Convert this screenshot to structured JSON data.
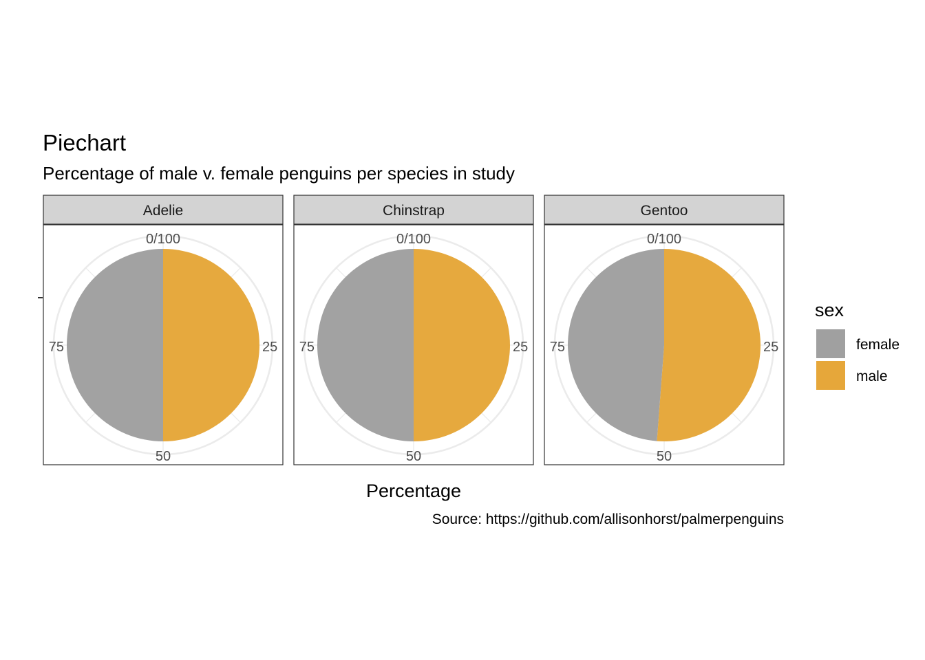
{
  "chart_data": {
    "type": "pie",
    "title": "Piechart",
    "subtitle": "Percentage of male v. female penguins per species in study",
    "xlabel": "Percentage",
    "caption": "Source: https://github.com/allisonhorst/palmerpenguins",
    "theta_ticks": [
      "0/100",
      "25",
      "50",
      "75"
    ],
    "legend": {
      "title": "sex",
      "position": "right",
      "entries": [
        {
          "label": "female",
          "color": "#a0a0a0"
        },
        {
          "label": "male",
          "color": "#e6a73a"
        }
      ]
    },
    "facets": [
      {
        "label": "Adelie",
        "slices": [
          {
            "label": "male",
            "value": 50.0
          },
          {
            "label": "female",
            "value": 50.0
          }
        ]
      },
      {
        "label": "Chinstrap",
        "slices": [
          {
            "label": "male",
            "value": 50.0
          },
          {
            "label": "female",
            "value": 50.0
          }
        ]
      },
      {
        "label": "Gentoo",
        "slices": [
          {
            "label": "male",
            "value": 51.2
          },
          {
            "label": "female",
            "value": 48.8
          }
        ]
      }
    ]
  }
}
